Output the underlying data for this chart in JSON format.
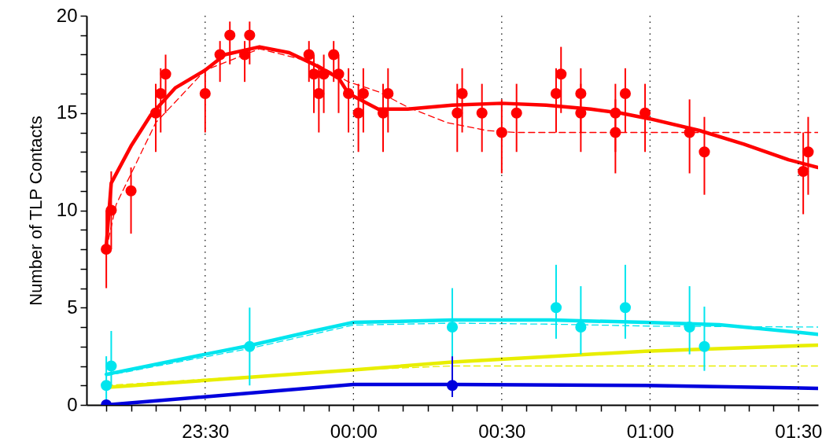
{
  "chart_data": {
    "type": "scatter",
    "ylabel": "Number of TLP Contacts",
    "xlim": [
      "--01-01T23:06",
      "--01-02T01:34"
    ],
    "ylim": [
      0,
      20
    ],
    "xticks": [
      {
        "value": "--01-01T23:10",
        "label": null
      },
      {
        "value": "--01-01T23:15",
        "label": null
      },
      {
        "value": "--01-01T23:20",
        "label": null
      },
      {
        "value": "--01-01T23:25",
        "label": null
      },
      {
        "value": "--01-01T23:30",
        "label": "23:30"
      },
      {
        "value": "--01-01T23:35",
        "label": null
      },
      {
        "value": "--01-01T23:40",
        "label": null
      },
      {
        "value": "--01-01T23:45",
        "label": null
      },
      {
        "value": "--01-01T23:50",
        "label": null
      },
      {
        "value": "--01-01T23:55",
        "label": null
      },
      {
        "value": "--01-02T00:00",
        "label": "00:00"
      },
      {
        "value": "--01-02T00:05",
        "label": null
      },
      {
        "value": "--01-02T00:10",
        "label": null
      },
      {
        "value": "--01-02T00:15",
        "label": null
      },
      {
        "value": "--01-02T00:20",
        "label": null
      },
      {
        "value": "--01-02T00:25",
        "label": null
      },
      {
        "value": "--01-02T00:30",
        "label": "00:30"
      },
      {
        "value": "--01-02T00:35",
        "label": null
      },
      {
        "value": "--01-02T00:40",
        "label": null
      },
      {
        "value": "--01-02T00:45",
        "label": null
      },
      {
        "value": "--01-02T00:50",
        "label": null
      },
      {
        "value": "--01-02T00:55",
        "label": null
      },
      {
        "value": "--01-02T01:00",
        "label": "01:00"
      },
      {
        "value": "--01-02T01:05",
        "label": null
      },
      {
        "value": "--01-02T01:10",
        "label": null
      },
      {
        "value": "--01-02T01:15",
        "label": null
      },
      {
        "value": "--01-02T01:20",
        "label": null
      },
      {
        "value": "--01-02T01:25",
        "label": null
      },
      {
        "value": "--01-02T01:30",
        "label": "01:30"
      }
    ],
    "yticks": [
      0,
      {
        "value": 1,
        "label": null
      },
      {
        "value": 2,
        "label": null
      },
      {
        "value": 3,
        "label": null
      },
      {
        "value": 4,
        "label": null
      },
      5,
      {
        "value": 6,
        "label": null
      },
      {
        "value": 7,
        "label": null
      },
      {
        "value": 8,
        "label": null
      },
      {
        "value": 9,
        "label": null
      },
      10,
      {
        "value": 11,
        "label": null
      },
      {
        "value": 12,
        "label": null
      },
      {
        "value": 13,
        "label": null
      },
      {
        "value": 14,
        "label": null
      },
      15,
      {
        "value": 16,
        "label": null
      },
      {
        "value": 17,
        "label": null
      },
      {
        "value": 18,
        "label": null
      },
      {
        "value": 19,
        "label": null
      },
      20
    ],
    "grid": "x",
    "marker": "circle",
    "series": [
      {
        "type": "line",
        "marker": "none",
        "line_style": "dashed",
        "color": "#ff0000",
        "x": [
          "--01-01T23:10",
          "--01-01T23:12",
          "--01-01T23:16",
          "--01-01T23:20",
          "--01-01T23:30",
          "--01-01T23:41",
          "--01-01T23:52",
          "--01-01T23:59",
          "--01-02T00:05",
          "--01-02T00:11",
          "--01-02T00:19",
          "--01-02T00:27",
          "--01-02T00:33",
          "--01-02T01:34"
        ],
        "values": [
          8,
          10.3,
          12.4,
          14.5,
          17.2,
          18.3,
          17.6,
          16.6,
          16.1,
          15.3,
          14.5,
          14.1,
          14,
          14
        ]
      },
      {
        "type": "line",
        "marker": "none",
        "line_style": "solid",
        "color": "#ff0000",
        "x": [
          "--01-01T23:10",
          "--01-01T23:11",
          "--01-01T23:15",
          "--01-01T23:19",
          "--01-01T23:24",
          "--01-01T23:30",
          "--01-01T23:34",
          "--01-01T23:41",
          "--01-01T23:47",
          "--01-01T23:52",
          "--01-01T23:57",
          "--01-01T23:59",
          "--01-02T00:05",
          "--01-02T00:11",
          "--01-02T00:20",
          "--01-02T00:30",
          "--01-02T00:39",
          "--01-02T00:48",
          "--01-02T00:54",
          "--01-02T01:00",
          "--01-02T01:10",
          "--01-02T01:19",
          "--01-02T01:28",
          "--01-02T01:34"
        ],
        "values": [
          8.2,
          11.4,
          13.3,
          14.9,
          16.3,
          17.2,
          18,
          18.4,
          18.1,
          17.5,
          16.8,
          16,
          15.2,
          15.2,
          15.4,
          15.5,
          15.4,
          15.2,
          15,
          14.7,
          14.1,
          13.4,
          12.6,
          12.2
        ]
      },
      {
        "type": "line",
        "marker": "none",
        "line_style": "dashed",
        "color": "#00e5ee",
        "x": [
          "--01-01T23:10",
          "--01-01T23:39",
          "--01-02T00:00",
          "--01-02T00:20",
          "--01-02T00:40",
          "--01-02T01:00",
          "--01-02T01:34"
        ],
        "values": [
          1.5,
          2.9,
          4.1,
          4.2,
          4.15,
          4.05,
          4
        ]
      },
      {
        "type": "line",
        "marker": "none",
        "line_style": "solid",
        "color": "#00e5ee",
        "x": [
          "--01-01T23:10",
          "--01-01T23:30",
          "--01-01T23:39",
          "--01-01T23:51",
          "--01-02T00:00",
          "--01-02T00:20",
          "--01-02T00:40",
          "--01-02T00:59",
          "--01-02T01:14",
          "--01-02T01:34"
        ],
        "values": [
          1.57,
          2.6,
          3.05,
          3.75,
          4.24,
          4.36,
          4.36,
          4.24,
          4.12,
          3.63
        ]
      },
      {
        "type": "line",
        "marker": "none",
        "line_style": "dashed",
        "color": "#e8ee00",
        "x": [
          "--01-01T23:10",
          "--01-02T00:00",
          "--01-02T00:20",
          "--01-02T01:34"
        ],
        "values": [
          1,
          1.8,
          2,
          2
        ]
      },
      {
        "type": "line",
        "marker": "none",
        "line_style": "solid",
        "color": "#e8ee00",
        "x": [
          "--01-01T23:10",
          "--01-02T00:00",
          "--01-02T00:20",
          "--01-02T00:59",
          "--01-02T01:34"
        ],
        "values": [
          0.9,
          1.8,
          2.2,
          2.76,
          3.07
        ]
      },
      {
        "type": "line",
        "marker": "none",
        "line_style": "solid",
        "color": "#0000dd",
        "x": [
          "--01-01T23:10",
          "--01-02T00:00",
          "--01-02T00:20",
          "--01-02T00:59",
          "--01-02T01:34"
        ],
        "values": [
          0,
          1.05,
          1.05,
          1,
          0.85
        ]
      },
      {
        "color": "#ff0000",
        "x": [
          "--01-01T23:10",
          "--01-01T23:11",
          "--01-01T23:15",
          "--01-01T23:20",
          "--01-01T23:21",
          "--01-01T23:22",
          "--01-01T23:30",
          "--01-01T23:33",
          "--01-01T23:35",
          "--01-01T23:38",
          "--01-01T23:39",
          "--01-01T23:51",
          "--01-01T23:52",
          "--01-01T23:53",
          "--01-01T23:54",
          "--01-01T23:56",
          "--01-01T23:57",
          "--01-01T23:59",
          "--01-02T00:01",
          "--01-02T00:02",
          "--01-02T00:06",
          "--01-02T00:07",
          "--01-02T00:21",
          "--01-02T00:22",
          "--01-02T00:26",
          "--01-02T00:30",
          "--01-02T00:33",
          "--01-02T00:41",
          "--01-02T00:42",
          "--01-02T00:46",
          "--01-02T00:46",
          "--01-02T00:53",
          "--01-02T00:53",
          "--01-02T00:55",
          "--01-02T00:59",
          "--01-02T01:08",
          "--01-02T01:11",
          "--01-02T01:31",
          "--01-02T01:32"
        ],
        "values": [
          8,
          10,
          11,
          15,
          16,
          17,
          16,
          18,
          19,
          18,
          19,
          18,
          17,
          16,
          17,
          18,
          17,
          16,
          15,
          16,
          15,
          16,
          15,
          16,
          15,
          14,
          15,
          16,
          17,
          16,
          15,
          14,
          15,
          16,
          15,
          14,
          13,
          12,
          13
        ],
        "errors": [
          [
            6,
            10
          ],
          [
            8,
            12
          ],
          [
            8.8,
            12.2
          ],
          [
            13,
            16.5
          ],
          [
            14,
            17.3
          ],
          [
            15,
            18
          ],
          [
            14,
            17.3
          ],
          [
            16.6,
            18.7
          ],
          [
            17.5,
            19.7
          ],
          [
            16.6,
            18.7
          ],
          [
            17.5,
            19.7
          ],
          [
            16.6,
            18.7
          ],
          [
            15,
            18
          ],
          [
            14,
            17.3
          ],
          [
            15,
            18
          ],
          [
            16.6,
            18.7
          ],
          [
            15,
            18
          ],
          [
            14,
            17.3
          ],
          [
            13,
            16.5
          ],
          [
            14,
            17.3
          ],
          [
            13,
            16.5
          ],
          [
            14,
            17.3
          ],
          [
            13,
            16.5
          ],
          [
            14,
            17.3
          ],
          [
            13,
            16.5
          ],
          [
            11.9,
            15.7
          ],
          [
            13,
            16.5
          ],
          [
            14,
            17.3
          ],
          [
            15,
            18.4
          ],
          [
            14,
            17.3
          ],
          [
            13,
            16.5
          ],
          [
            11.9,
            15.7
          ],
          [
            13,
            16.5
          ],
          [
            14,
            17.3
          ],
          [
            13,
            16.5
          ],
          [
            11.9,
            15.7
          ],
          [
            10.8,
            14.8
          ],
          [
            9.8,
            14
          ],
          [
            10.8,
            14.8
          ]
        ]
      },
      {
        "color": "#00e5ee",
        "x": [
          "--01-01T23:10",
          "--01-01T23:11",
          "--01-01T23:39",
          "--01-02T00:20",
          "--01-02T00:41",
          "--01-02T00:46",
          "--01-02T00:55",
          "--01-02T01:08",
          "--01-02T01:11"
        ],
        "values": [
          1,
          2,
          3,
          4,
          5,
          4,
          5,
          4,
          3
        ],
        "errors": [
          [
            0.1,
            2.5
          ],
          [
            1,
            3.8
          ],
          [
            1,
            5
          ],
          [
            2,
            6
          ],
          [
            3.4,
            7.2
          ],
          [
            2.6,
            6.1
          ],
          [
            3.4,
            7.2
          ],
          [
            2.6,
            6.1
          ],
          [
            1.75,
            5.05
          ]
        ]
      },
      {
        "color": "#0000dd",
        "x": [
          "--01-01T23:10",
          "--01-02T00:20"
        ],
        "values": [
          0,
          1
        ],
        "errors": [
          null,
          [
            0.4,
            2.5
          ]
        ]
      }
    ]
  }
}
